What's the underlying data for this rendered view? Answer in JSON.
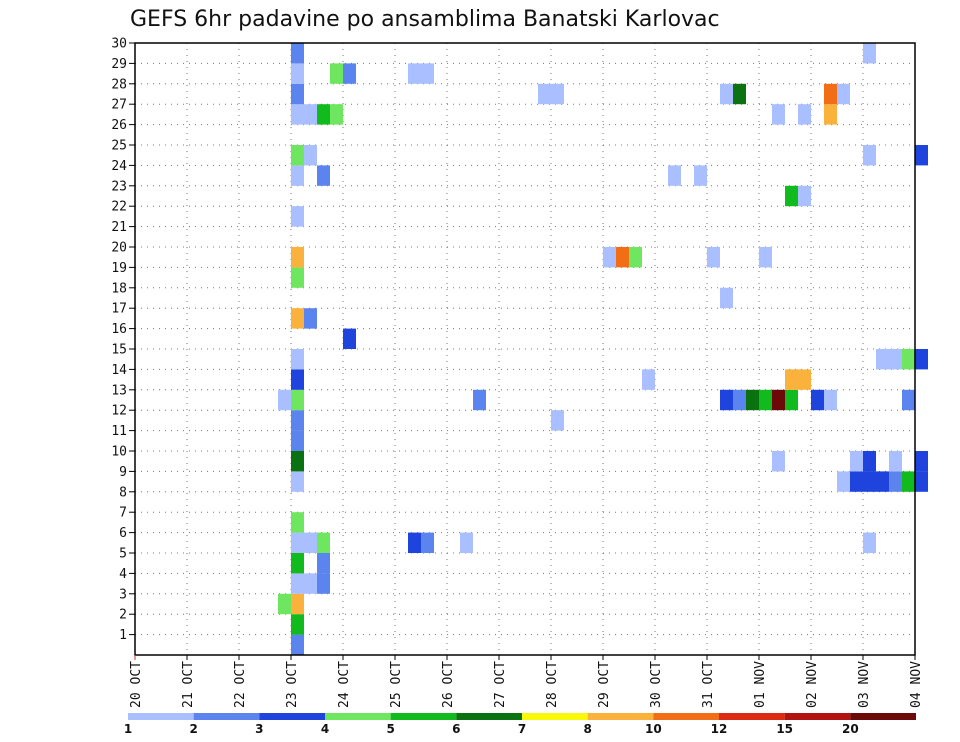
{
  "chart_data": {
    "type": "heatmap",
    "title": "GEFS 6hr padavine po ansamblima Banatski Karlovac",
    "x_tick_labels": [
      "20 OCT",
      "21 OCT",
      "22 OCT",
      "23 OCT",
      "24 OCT",
      "25 OCT",
      "26 OCT",
      "27 OCT",
      "28 OCT",
      "29 OCT",
      "30 OCT",
      "31 OCT",
      "01 NOV",
      "02 NOV",
      "03 NOV",
      "04 NOV"
    ],
    "x_range": [
      "20 OCT 00Z",
      "04 NOV 00Z"
    ],
    "time_step_hours": 6,
    "y_tick_labels": [
      "1",
      "2",
      "3",
      "4",
      "5",
      "6",
      "7",
      "8",
      "9",
      "10",
      "11",
      "12",
      "13",
      "14",
      "15",
      "16",
      "17",
      "18",
      "19",
      "20",
      "21",
      "22",
      "23",
      "24",
      "25",
      "26",
      "27",
      "28",
      "29",
      "30"
    ],
    "y_range": [
      0,
      30
    ],
    "grid": true,
    "legend_placement": "bottom",
    "legend_labels": [
      "1",
      "2",
      "3",
      "4",
      "5",
      "6",
      "7",
      "8",
      "10",
      "12",
      "15",
      "20"
    ],
    "legend_colors": [
      "#aabfff",
      "#5b84ee",
      "#1f44dd",
      "#6ee65f",
      "#11bb1d",
      "#0b7212",
      "#f8f80a",
      "#fbb23c",
      "#f26e16",
      "#dd2a12",
      "#b21310",
      "#6c0a0a"
    ],
    "values": [
      {
        "date": "23 OCT 00Z",
        "member": 0,
        "value": 2.5
      },
      {
        "date": "23 OCT 00Z",
        "member": 1,
        "value": 5.5
      },
      {
        "date": "23 OCT 00Z",
        "member": 2,
        "value": 8.5
      },
      {
        "date": "22 OCT 18Z",
        "member": 2,
        "value": 4.5
      },
      {
        "date": "23 OCT 00Z",
        "member": 3,
        "value": 1.5
      },
      {
        "date": "23 OCT 06Z",
        "member": 3,
        "value": 1.5
      },
      {
        "date": "23 OCT 12Z",
        "member": 3,
        "value": 2.5
      },
      {
        "date": "23 OCT 00Z",
        "member": 4,
        "value": 5.5
      },
      {
        "date": "23 OCT 12Z",
        "member": 4,
        "value": 2.5
      },
      {
        "date": "23 OCT 00Z",
        "member": 5,
        "value": 1.5
      },
      {
        "date": "23 OCT 06Z",
        "member": 5,
        "value": 1.5
      },
      {
        "date": "23 OCT 12Z",
        "member": 5,
        "value": 4.5
      },
      {
        "date": "25 OCT 06Z",
        "member": 5,
        "value": 3.5
      },
      {
        "date": "25 OCT 12Z",
        "member": 5,
        "value": 2.5
      },
      {
        "date": "26 OCT 06Z",
        "member": 5,
        "value": 1.5
      },
      {
        "date": "03 NOV 00Z",
        "member": 5,
        "value": 1.5
      },
      {
        "date": "23 OCT 00Z",
        "member": 6,
        "value": 4.5
      },
      {
        "date": "23 OCT 00Z",
        "member": 8,
        "value": 1.5
      },
      {
        "date": "02 NOV 12Z",
        "member": 8,
        "value": 1.5
      },
      {
        "date": "02 NOV 18Z",
        "member": 8,
        "value": 3.5
      },
      {
        "date": "03 NOV 00Z",
        "member": 8,
        "value": 3.5
      },
      {
        "date": "03 NOV 06Z",
        "member": 8,
        "value": 3.5
      },
      {
        "date": "03 NOV 12Z",
        "member": 8,
        "value": 2.5
      },
      {
        "date": "03 NOV 18Z",
        "member": 8,
        "value": 5.5
      },
      {
        "date": "04 NOV 00Z",
        "member": 8,
        "value": 3.5
      },
      {
        "date": "23 OCT 00Z",
        "member": 9,
        "value": 6.5
      },
      {
        "date": "01 NOV 06Z",
        "member": 9,
        "value": 1.5
      },
      {
        "date": "02 NOV 18Z",
        "member": 9,
        "value": 1.5
      },
      {
        "date": "03 NOV 00Z",
        "member": 9,
        "value": 3.5
      },
      {
        "date": "03 NOV 12Z",
        "member": 9,
        "value": 1.5
      },
      {
        "date": "04 NOV 00Z",
        "member": 9,
        "value": 3.5
      },
      {
        "date": "23 OCT 00Z",
        "member": 10,
        "value": 2.5
      },
      {
        "date": "23 OCT 00Z",
        "member": 11,
        "value": 2.5
      },
      {
        "date": "28 OCT 00Z",
        "member": 11,
        "value": 1.5
      },
      {
        "date": "22 OCT 18Z",
        "member": 12,
        "value": 1.5
      },
      {
        "date": "23 OCT 00Z",
        "member": 12,
        "value": 4.5
      },
      {
        "date": "26 OCT 12Z",
        "member": 12,
        "value": 2.5
      },
      {
        "date": "31 OCT 06Z",
        "member": 12,
        "value": 3.5
      },
      {
        "date": "31 OCT 12Z",
        "member": 12,
        "value": 2.5
      },
      {
        "date": "31 OCT 18Z",
        "member": 12,
        "value": 6.5
      },
      {
        "date": "01 NOV 00Z",
        "member": 12,
        "value": 5.5
      },
      {
        "date": "01 NOV 06Z",
        "member": 12,
        "value": 25
      },
      {
        "date": "01 NOV 12Z",
        "member": 12,
        "value": 5.5
      },
      {
        "date": "02 NOV 00Z",
        "member": 12,
        "value": 3.5
      },
      {
        "date": "02 NOV 06Z",
        "member": 12,
        "value": 1.5
      },
      {
        "date": "03 NOV 18Z",
        "member": 12,
        "value": 2.5
      },
      {
        "date": "23 OCT 00Z",
        "member": 13,
        "value": 3.5
      },
      {
        "date": "29 OCT 18Z",
        "member": 13,
        "value": 1.5
      },
      {
        "date": "01 NOV 12Z",
        "member": 13,
        "value": 9.5
      },
      {
        "date": "01 NOV 18Z",
        "member": 13,
        "value": 9.5
      },
      {
        "date": "23 OCT 00Z",
        "member": 14,
        "value": 1.5
      },
      {
        "date": "03 NOV 06Z",
        "member": 14,
        "value": 1.5
      },
      {
        "date": "03 NOV 12Z",
        "member": 14,
        "value": 1.5
      },
      {
        "date": "03 NOV 18Z",
        "member": 14,
        "value": 4.5
      },
      {
        "date": "04 NOV 00Z",
        "member": 14,
        "value": 3.5
      },
      {
        "date": "24 OCT 00Z",
        "member": 15,
        "value": 3.5
      },
      {
        "date": "23 OCT 00Z",
        "member": 16,
        "value": 9.5
      },
      {
        "date": "23 OCT 06Z",
        "member": 16,
        "value": 2.5
      },
      {
        "date": "31 OCT 06Z",
        "member": 17,
        "value": 1.5
      },
      {
        "date": "23 OCT 00Z",
        "member": 18,
        "value": 4.5
      },
      {
        "date": "23 OCT 00Z",
        "member": 19,
        "value": 9.5
      },
      {
        "date": "29 OCT 00Z",
        "member": 19,
        "value": 1.5
      },
      {
        "date": "29 OCT 06Z",
        "member": 19,
        "value": 11
      },
      {
        "date": "29 OCT 12Z",
        "member": 19,
        "value": 4.5
      },
      {
        "date": "31 OCT 00Z",
        "member": 19,
        "value": 1.5
      },
      {
        "date": "01 NOV 00Z",
        "member": 19,
        "value": 1.5
      },
      {
        "date": "23 OCT 00Z",
        "member": 21,
        "value": 1.5
      },
      {
        "date": "01 NOV 12Z",
        "member": 22,
        "value": 5.5
      },
      {
        "date": "01 NOV 18Z",
        "member": 22,
        "value": 1.5
      },
      {
        "date": "23 OCT 00Z",
        "member": 23,
        "value": 1.5
      },
      {
        "date": "23 OCT 12Z",
        "member": 23,
        "value": 2.5
      },
      {
        "date": "30 OCT 06Z",
        "member": 23,
        "value": 1.5
      },
      {
        "date": "30 OCT 18Z",
        "member": 23,
        "value": 1.5
      },
      {
        "date": "23 OCT 00Z",
        "member": 24,
        "value": 4.5
      },
      {
        "date": "23 OCT 06Z",
        "member": 24,
        "value": 1.5
      },
      {
        "date": "03 NOV 00Z",
        "member": 24,
        "value": 1.5
      },
      {
        "date": "04 NOV 00Z",
        "member": 24,
        "value": 3.5
      },
      {
        "date": "23 OCT 00Z",
        "member": 26,
        "value": 1.5
      },
      {
        "date": "23 OCT 06Z",
        "member": 26,
        "value": 1.5
      },
      {
        "date": "23 OCT 12Z",
        "member": 26,
        "value": 5.5
      },
      {
        "date": "23 OCT 18Z",
        "member": 26,
        "value": 4.5
      },
      {
        "date": "01 NOV 06Z",
        "member": 26,
        "value": 1.5
      },
      {
        "date": "01 NOV 18Z",
        "member": 26,
        "value": 1.5
      },
      {
        "date": "02 NOV 06Z",
        "member": 26,
        "value": 9.5
      },
      {
        "date": "23 OCT 00Z",
        "member": 27,
        "value": 2.5
      },
      {
        "date": "27 OCT 18Z",
        "member": 27,
        "value": 1.5
      },
      {
        "date": "28 OCT 00Z",
        "member": 27,
        "value": 1.5
      },
      {
        "date": "31 OCT 06Z",
        "member": 27,
        "value": 1.5
      },
      {
        "date": "31 OCT 12Z",
        "member": 27,
        "value": 6.5
      },
      {
        "date": "02 NOV 06Z",
        "member": 27,
        "value": 11
      },
      {
        "date": "02 NOV 12Z",
        "member": 27,
        "value": 1.5
      },
      {
        "date": "23 OCT 00Z",
        "member": 28,
        "value": 1.5
      },
      {
        "date": "23 OCT 18Z",
        "member": 28,
        "value": 4.5
      },
      {
        "date": "24 OCT 00Z",
        "member": 28,
        "value": 2.5
      },
      {
        "date": "25 OCT 06Z",
        "member": 28,
        "value": 1.5
      },
      {
        "date": "25 OCT 12Z",
        "member": 28,
        "value": 1.5
      },
      {
        "date": "23 OCT 00Z",
        "member": 29,
        "value": 2.5
      },
      {
        "date": "03 NOV 00Z",
        "member": 29,
        "value": 1.5
      }
    ]
  }
}
